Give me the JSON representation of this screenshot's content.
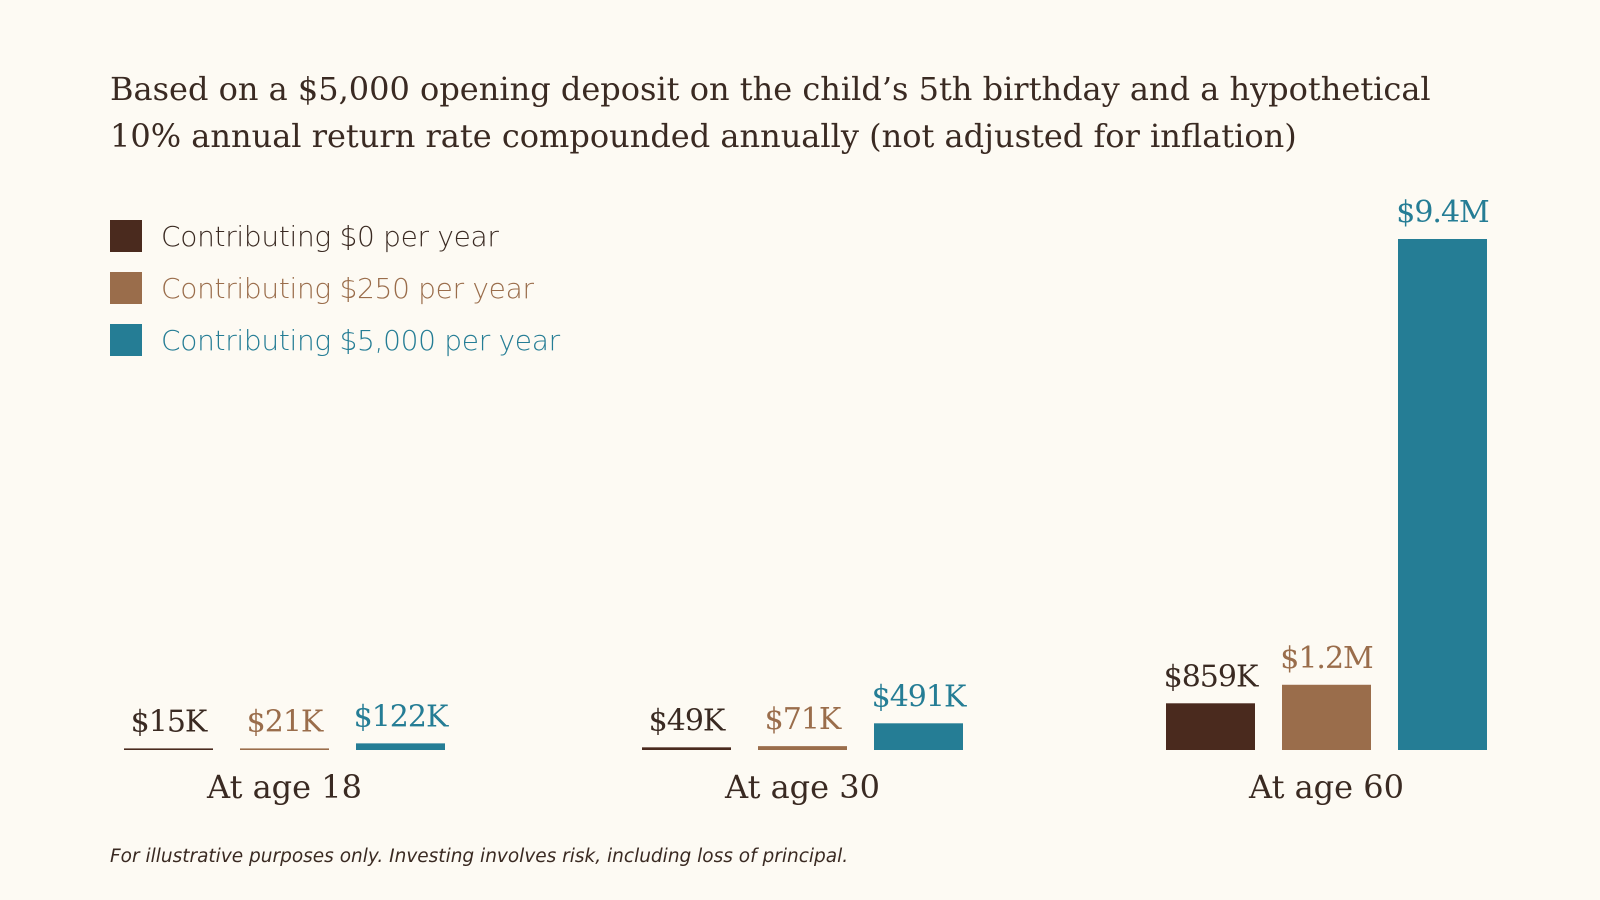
{
  "colors": {
    "background": "#fdfaf3",
    "text": "#3a2a22",
    "series": [
      "#4a2a1e",
      "#9a6d4b",
      "#257d95"
    ]
  },
  "chart_data": {
    "type": "bar",
    "title_lines": [
      "Based on a $5,000 opening deposit on the child’s 5th birthday and a hypothetical",
      "10% annual return rate compounded annually (not adjusted for inflation)"
    ],
    "categories": [
      "At age 18",
      "At age 30",
      "At age 60"
    ],
    "series": [
      {
        "name": "Contributing $0 per year",
        "values": [
          15000,
          49000,
          859000
        ],
        "labels": [
          "$15K",
          "$49K",
          "$859K"
        ]
      },
      {
        "name": "Contributing $250 per year",
        "values": [
          21000,
          71000,
          1200000
        ],
        "labels": [
          "$21K",
          "$71K",
          "$1.2M"
        ]
      },
      {
        "name": "Contributing $5,000 per year",
        "values": [
          122000,
          491000,
          9400000
        ],
        "labels": [
          "$122K",
          "$491K",
          "$9.4M"
        ]
      }
    ],
    "xlabel": "",
    "ylabel": "",
    "ylim": [
      0,
      9400000
    ],
    "grid": false,
    "axes_visible": false,
    "legend_position": "top-left",
    "footnote": "For illustrative purposes only. Investing involves risk, including loss of principal."
  }
}
